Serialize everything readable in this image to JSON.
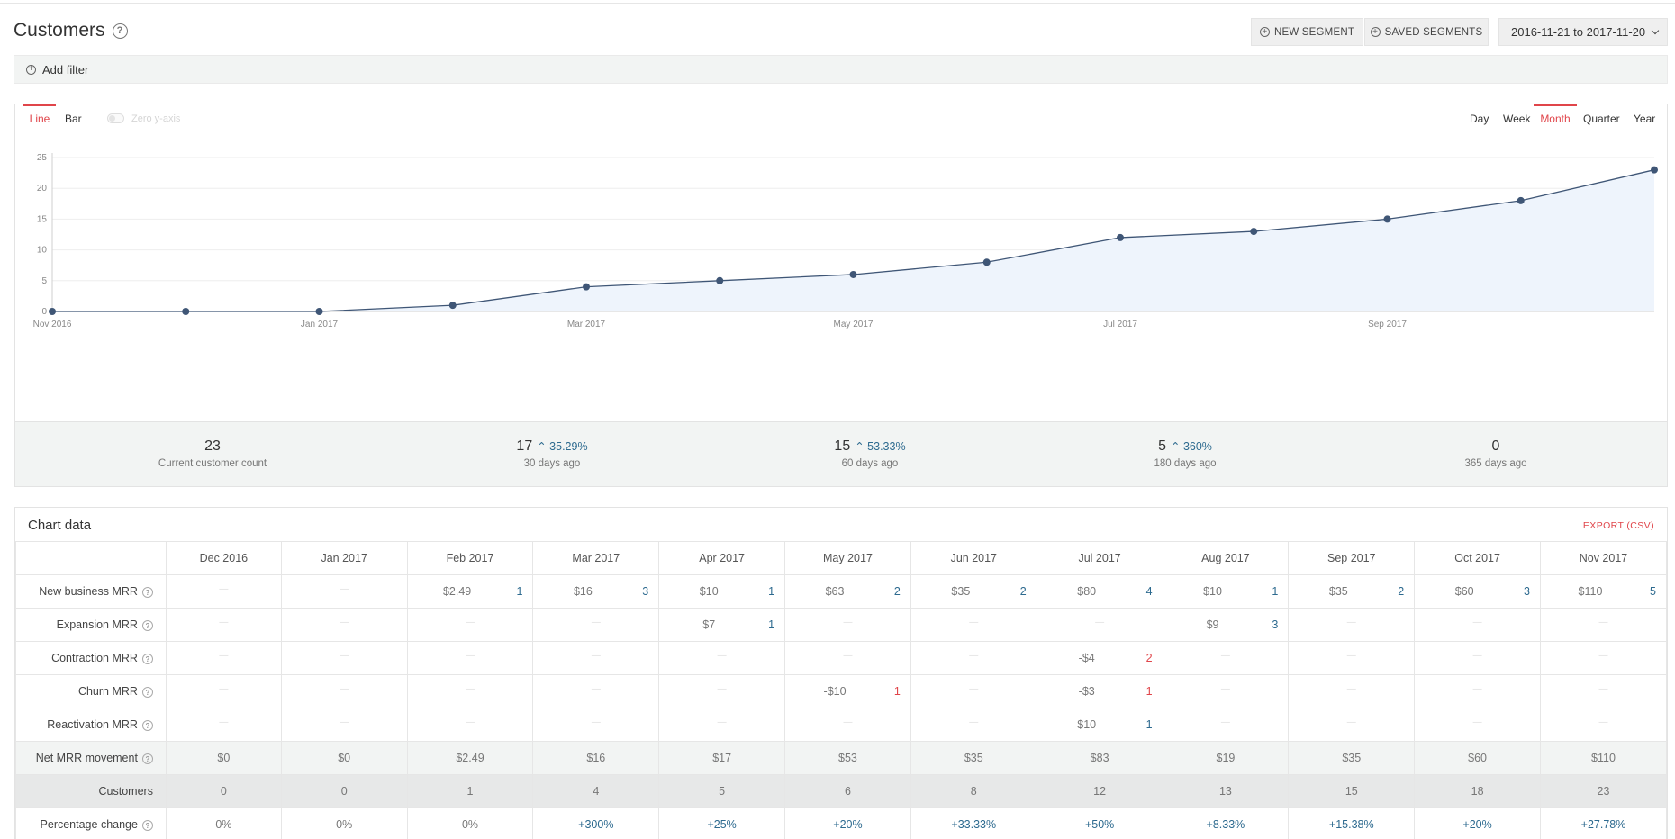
{
  "page": {
    "title": "Customers",
    "new_segment": "NEW SEGMENT",
    "saved_segments": "SAVED SEGMENTS",
    "date_range": "2016-11-21 to 2017-11-20",
    "add_filter": "Add filter"
  },
  "chart_controls": {
    "types": [
      "Line",
      "Bar"
    ],
    "active_type": "Line",
    "zero_axis_label": "Zero y-axis",
    "periods": [
      "Day",
      "Week",
      "Month",
      "Quarter",
      "Year"
    ],
    "active_period": "Month"
  },
  "chart_data": {
    "type": "area",
    "x": [
      "2016-11",
      "2016-12",
      "2017-01",
      "2017-02",
      "2017-03",
      "2017-04",
      "2017-05",
      "2017-06",
      "2017-07",
      "2017-08",
      "2017-09",
      "2017-10",
      "2017-11"
    ],
    "values": [
      0,
      0,
      0,
      1,
      4,
      5,
      6,
      8,
      12,
      13,
      15,
      18,
      23
    ],
    "x_tick_labels": [
      "Nov 2016",
      "Jan 2017",
      "Mar 2017",
      "May 2017",
      "Jul 2017",
      "Sep 2017"
    ],
    "x_tick_at": [
      "2016-11",
      "2017-01",
      "2017-03",
      "2017-05",
      "2017-07",
      "2017-09"
    ],
    "y_ticks": [
      0,
      5,
      10,
      15,
      20,
      25
    ],
    "ylim": [
      0,
      25
    ],
    "grid": true,
    "line_color": "#3f5676",
    "fill_color": "#eef4fc"
  },
  "stats": [
    {
      "value": "23",
      "change": "",
      "label": "Current customer count"
    },
    {
      "value": "17",
      "change": "35.29%",
      "label": "30 days ago"
    },
    {
      "value": "15",
      "change": "53.33%",
      "label": "60 days ago"
    },
    {
      "value": "5",
      "change": "360%",
      "label": "180 days ago"
    },
    {
      "value": "0",
      "change": "",
      "label": "365 days ago"
    }
  ],
  "table": {
    "title": "Chart data",
    "export": "EXPORT (CSV)",
    "months": [
      "Dec 2016",
      "Jan 2017",
      "Feb 2017",
      "Mar 2017",
      "Apr 2017",
      "May 2017",
      "Jun 2017",
      "Jul 2017",
      "Aug 2017",
      "Sep 2017",
      "Oct 2017",
      "Nov 2017"
    ],
    "mrr_rows": [
      {
        "label": "New business MRR",
        "kind": "pos",
        "cells": [
          null,
          null,
          [
            "$2.49",
            "1"
          ],
          [
            "$16",
            "3"
          ],
          [
            "$10",
            "1"
          ],
          [
            "$63",
            "2"
          ],
          [
            "$35",
            "2"
          ],
          [
            "$80",
            "4"
          ],
          [
            "$10",
            "1"
          ],
          [
            "$35",
            "2"
          ],
          [
            "$60",
            "3"
          ],
          [
            "$110",
            "5"
          ]
        ]
      },
      {
        "label": "Expansion MRR",
        "kind": "pos",
        "cells": [
          null,
          null,
          null,
          null,
          [
            "$7",
            "1"
          ],
          null,
          null,
          null,
          [
            "$9",
            "3"
          ],
          null,
          null,
          null
        ]
      },
      {
        "label": "Contraction MRR",
        "kind": "neg",
        "cells": [
          null,
          null,
          null,
          null,
          null,
          null,
          null,
          [
            "-$4",
            "2"
          ],
          null,
          null,
          null,
          null
        ]
      },
      {
        "label": "Churn MRR",
        "kind": "neg",
        "cells": [
          null,
          null,
          null,
          null,
          null,
          [
            "-$10",
            "1"
          ],
          null,
          [
            "-$3",
            "1"
          ],
          null,
          null,
          null,
          null
        ]
      },
      {
        "label": "Reactivation MRR",
        "kind": "pos",
        "cells": [
          null,
          null,
          null,
          null,
          null,
          null,
          null,
          [
            "$10",
            "1"
          ],
          null,
          null,
          null,
          null
        ]
      }
    ],
    "net_label": "Net MRR movement",
    "net_values": [
      "$0",
      "$0",
      "$2.49",
      "$16",
      "$17",
      "$53",
      "$35",
      "$83",
      "$19",
      "$35",
      "$60",
      "$110"
    ],
    "customers_label": "Customers",
    "customers_values": [
      "0",
      "0",
      "1",
      "4",
      "5",
      "6",
      "8",
      "12",
      "13",
      "15",
      "18",
      "23"
    ],
    "pct_label": "Percentage change",
    "pct_values": [
      "0%",
      "0%",
      "0%",
      "+300%",
      "+25%",
      "+20%",
      "+33.33%",
      "+50%",
      "+8.33%",
      "+15.38%",
      "+20%",
      "+27.78%"
    ]
  }
}
